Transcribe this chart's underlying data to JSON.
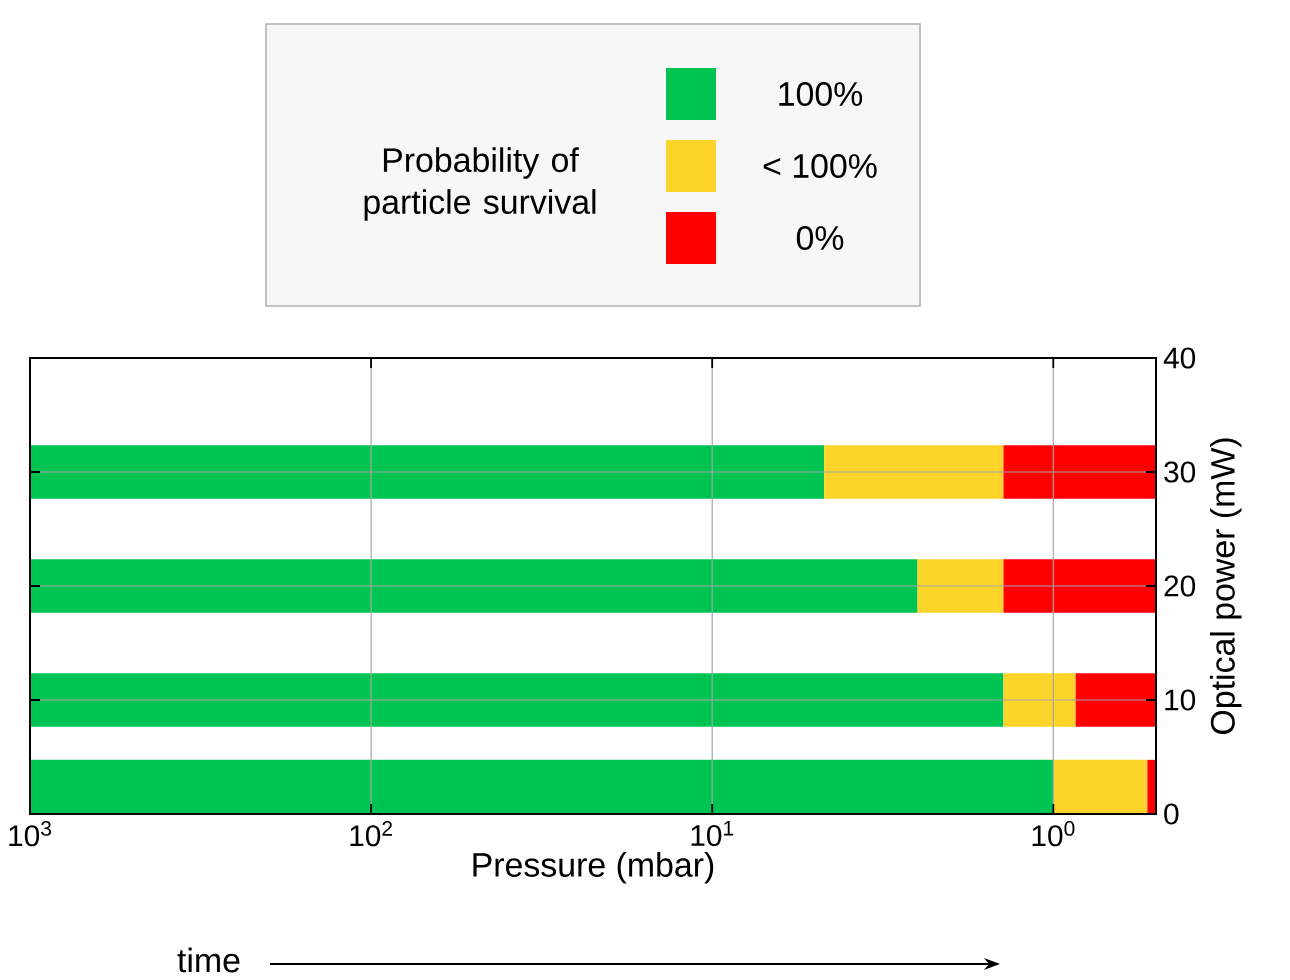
{
  "chart_data": {
    "type": "bar",
    "orientation": "horizontal",
    "log": "x",
    "xlabel": "Pressure (mbar)",
    "ylabel": "Optical power (mW)",
    "legend_title": "Probability of particle survival",
    "legend": "top",
    "x": [
      30,
      20,
      10,
      2.4
    ],
    "xlim": [
      1000,
      0.5
    ],
    "xticks": [
      {
        "value": 1000,
        "label": "10$^{3}$"
      },
      {
        "value": 100,
        "label": "10$^{2}$"
      },
      {
        "value": 10,
        "label": "10$^{1}$"
      },
      {
        "value": 1,
        "label": "10$^{0}$"
      }
    ],
    "ylim": [
      0,
      40
    ],
    "yticks": [
      0,
      10,
      20,
      30,
      40
    ],
    "grid": true,
    "series": [
      {
        "name": "100%",
        "color": "#00c452",
        "base": [
          1000,
          1000,
          1000,
          1000
        ],
        "values": [
          -995.3,
          -997.5,
          -998.6,
          -999
        ]
      },
      {
        "name": "< 100%",
        "color": "#fdd52a",
        "base": [
          4.7,
          2.5,
          1.4,
          1.0
        ],
        "values": [
          -3.3,
          -1.1,
          -0.54,
          -0.47
        ]
      },
      {
        "name": "0%",
        "color": "#ff0000",
        "base": [
          1.4,
          1.4,
          0.86,
          0.53
        ],
        "values": [
          -0.9,
          -0.9,
          -0.36,
          -0.03
        ]
      }
    ],
    "annotations": [
      "time"
    ]
  }
}
